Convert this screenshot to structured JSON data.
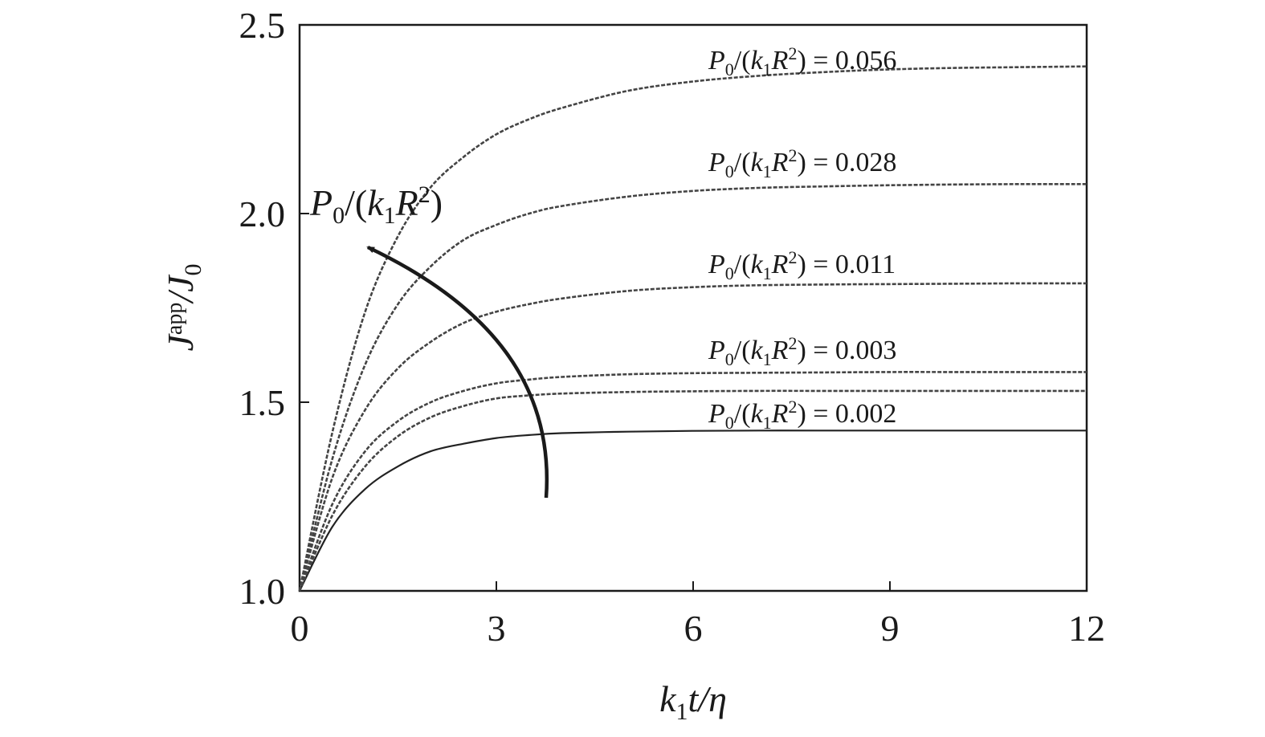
{
  "chart_data": {
    "type": "line",
    "xlabel": "k1t/η",
    "xlabel_parts": {
      "k": "k",
      "sub": "1",
      "rest": "t/η"
    },
    "ylabel": "Japp/J0",
    "ylabel_parts": {
      "J": "J",
      "sup": "app",
      "slash": "/J",
      "sub": "0"
    },
    "xlim": [
      0,
      12
    ],
    "ylim": [
      1.0,
      2.5
    ],
    "xticks": [
      "0",
      "3",
      "6",
      "9",
      "12"
    ],
    "yticks": [
      "1.0",
      "1.5",
      "2.0",
      "2.5"
    ],
    "grid": false,
    "x": [
      0,
      0.5,
      1,
      1.5,
      2,
      2.5,
      3,
      3.5,
      4,
      5,
      6,
      7,
      8,
      9,
      10,
      11,
      12
    ],
    "series": [
      {
        "values": [
          1.0,
          1.17,
          1.27,
          1.33,
          1.37,
          1.39,
          1.405,
          1.413,
          1.418,
          1.422,
          1.424,
          1.425,
          1.425,
          1.425,
          1.425,
          1.425,
          1.425
        ],
        "style": "solid"
      },
      {
        "values": [
          1.0,
          1.2,
          1.33,
          1.41,
          1.46,
          1.49,
          1.51,
          1.518,
          1.523,
          1.527,
          1.529,
          1.53,
          1.53,
          1.53,
          1.53,
          1.53,
          1.53
        ],
        "style": "dashed"
      },
      {
        "values": [
          1.0,
          1.23,
          1.37,
          1.45,
          1.5,
          1.53,
          1.55,
          1.56,
          1.567,
          1.574,
          1.577,
          1.578,
          1.579,
          1.58,
          1.58,
          1.58,
          1.58
        ],
        "style": "dashed"
      },
      {
        "values": [
          1.0,
          1.3,
          1.48,
          1.59,
          1.66,
          1.71,
          1.74,
          1.76,
          1.775,
          1.795,
          1.805,
          1.81,
          1.812,
          1.813,
          1.814,
          1.815,
          1.815
        ],
        "style": "dashed"
      },
      {
        "values": [
          1.0,
          1.35,
          1.6,
          1.76,
          1.86,
          1.93,
          1.97,
          2.0,
          2.02,
          2.045,
          2.06,
          2.068,
          2.072,
          2.075,
          2.077,
          2.078,
          2.078
        ],
        "style": "dashed"
      },
      {
        "values": [
          1.0,
          1.42,
          1.74,
          1.94,
          2.07,
          2.15,
          2.21,
          2.25,
          2.28,
          2.325,
          2.35,
          2.365,
          2.375,
          2.382,
          2.386,
          2.388,
          2.39
        ],
        "style": "dashed"
      }
    ],
    "annotations": [
      {
        "text": "P0/(k1R2) = 0.056",
        "parts": {
          "P": "P",
          "s0": "0",
          "a": "/(",
          "k": "k",
          "s1": "1",
          "R": "R",
          "sup": "2",
          "rest": ") = 0.056"
        }
      },
      {
        "text": "P0/(k1R2) = 0.028",
        "parts": {
          "P": "P",
          "s0": "0",
          "a": "/(",
          "k": "k",
          "s1": "1",
          "R": "R",
          "sup": "2",
          "rest": ") = 0.028"
        }
      },
      {
        "text": "P0/(k1R2) = 0.011",
        "parts": {
          "P": "P",
          "s0": "0",
          "a": "/(",
          "k": "k",
          "s1": "1",
          "R": "R",
          "sup": "2",
          "rest": ") = 0.011"
        }
      },
      {
        "text": "P0/(k1R2) = 0.003",
        "parts": {
          "P": "P",
          "s0": "0",
          "a": "/(",
          "k": "k",
          "s1": "1",
          "R": "R",
          "sup": "2",
          "rest": ") = 0.003"
        }
      },
      {
        "text": "P0/(k1R2) = 0.002",
        "parts": {
          "P": "P",
          "s0": "0",
          "a": "/(",
          "k": "k",
          "s1": "1",
          "R": "R",
          "sup": "2",
          "rest": ") = 0.002"
        }
      }
    ],
    "arrow_label": {
      "text": "P0/(k1R2)",
      "parts": {
        "P": "P",
        "s0": "0",
        "a": "/(",
        "k": "k",
        "s1": "1",
        "R": "R",
        "sup": "2",
        "rest": ")"
      }
    },
    "arrow_direction": "increasing"
  }
}
